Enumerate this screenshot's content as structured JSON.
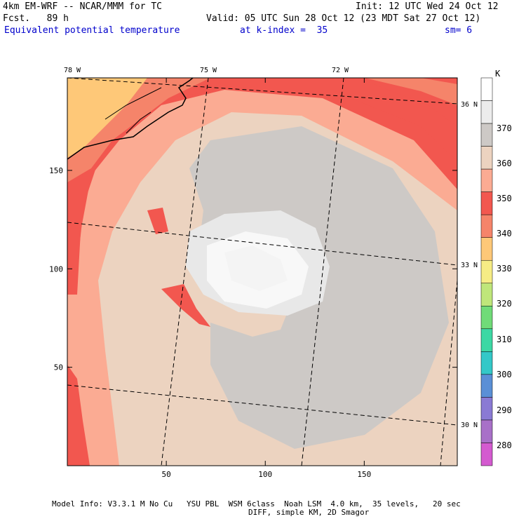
{
  "header": {
    "model_line": "4km EM-WRF -- NCAR/MMM for TC",
    "init_line": "Init: 12 UTC Wed 24 Oct 12",
    "fcst_line": "Fcst.   89 h",
    "valid_line": "Valid: 05 UTC Sun 28 Oct 12 (23 MDT Sat 27 Oct 12)",
    "field_line": "Equivalent potential temperature",
    "kindex_line": "at k-index =  35",
    "sm_line": "sm= 6"
  },
  "chart_data": {
    "type": "heatmap",
    "title": "Equivalent potential temperature",
    "x_ticks": [
      50,
      100,
      150
    ],
    "y_ticks": [
      50,
      100,
      150
    ],
    "xlim": [
      0,
      197
    ],
    "ylim": [
      0,
      197
    ],
    "lon_labels": [
      "78 W",
      "75 W",
      "72 W"
    ],
    "lat_labels": [
      "36 N",
      "33 N",
      "30 N"
    ],
    "colorbar": {
      "unit": "K",
      "levels": [
        370,
        360,
        350,
        340,
        330,
        320,
        310,
        300,
        290,
        280
      ],
      "colors": [
        "#ffffff",
        "#ececec",
        "#cdc9c6",
        "#ecd3c0",
        "#fbab93",
        "#f2574f",
        "#f5846a",
        "#fec878",
        "#f6ec85",
        "#bfe67a",
        "#70db78",
        "#3cd8a4",
        "#33c8c8",
        "#5a8fd6",
        "#8a7ad4",
        "#a870c8",
        "#d45ad0"
      ]
    },
    "contours": [
      {
        "level": 370,
        "color": "#f8f8f8"
      },
      {
        "level": 360,
        "color": "#e8e8e8"
      },
      {
        "level": 355,
        "color": "#cdc9c6"
      },
      {
        "level": 350,
        "color": "#ecd3c0"
      },
      {
        "level": 345,
        "color": "#fbab93"
      },
      {
        "level": 340,
        "color": "#f2574f"
      },
      {
        "level": 335,
        "color": "#f5846a"
      },
      {
        "level": 330,
        "color": "#fec878"
      }
    ]
  },
  "footer": {
    "line1": "Model Info: V3.3.1 M No Cu   YSU PBL  WSM 6class  Noah LSM  4.0 km,  35 levels,   20 sec",
    "line2": "DIFF, simple KM, 2D Smagor"
  }
}
